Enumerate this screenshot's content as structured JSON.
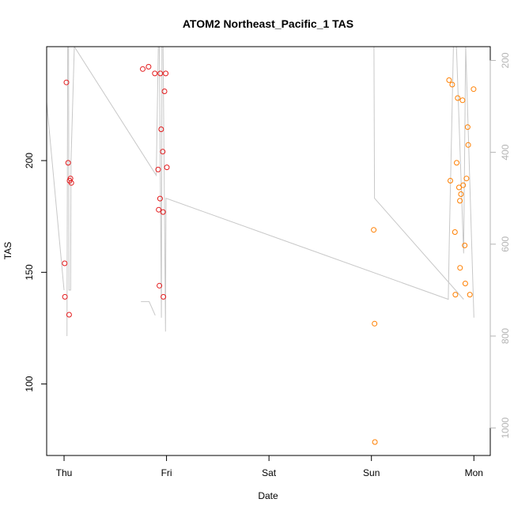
{
  "chart_data": {
    "type": "scatter",
    "title": "ATOM2 Northeast_Pacific_1 TAS",
    "xlabel": "Date",
    "ylabel": "TAS",
    "x_axis": {
      "unit": "days from first tick",
      "ticks": [
        {
          "value": 0,
          "label": "Thu"
        },
        {
          "value": 1,
          "label": "Fri"
        },
        {
          "value": 2,
          "label": "Sat"
        },
        {
          "value": 3,
          "label": "Sun"
        },
        {
          "value": 4,
          "label": "Mon"
        }
      ],
      "xlim": [
        -0.17,
        4.16
      ]
    },
    "y_axis_left": {
      "ticks": [
        100,
        150,
        200
      ],
      "ylim": [
        68,
        251
      ]
    },
    "y_axis_right": {
      "ticks": [
        200,
        400,
        600,
        800,
        1000
      ],
      "ylim": [
        1060,
        170
      ],
      "color": "#b4b4b4"
    },
    "series": [
      {
        "color": "#e41a1c",
        "points": [
          {
            "x": 0.006,
            "y": 154
          },
          {
            "x": 0.008,
            "y": 139
          },
          {
            "x": 0.023,
            "y": 235
          },
          {
            "x": 0.04,
            "y": 199
          },
          {
            "x": 0.049,
            "y": 131
          },
          {
            "x": 0.054,
            "y": 191
          },
          {
            "x": 0.062,
            "y": 192
          },
          {
            "x": 0.071,
            "y": 190
          },
          {
            "x": 0.768,
            "y": 241
          },
          {
            "x": 0.825,
            "y": 242
          },
          {
            "x": 0.886,
            "y": 239
          },
          {
            "x": 0.918,
            "y": 196
          },
          {
            "x": 0.924,
            "y": 178
          },
          {
            "x": 0.931,
            "y": 144
          },
          {
            "x": 0.937,
            "y": 183
          },
          {
            "x": 0.94,
            "y": 239
          },
          {
            "x": 0.948,
            "y": 214
          },
          {
            "x": 0.963,
            "y": 204
          },
          {
            "x": 0.966,
            "y": 177
          },
          {
            "x": 0.969,
            "y": 139
          },
          {
            "x": 0.98,
            "y": 231
          },
          {
            "x": 0.992,
            "y": 239
          },
          {
            "x": 1.003,
            "y": 197
          }
        ]
      },
      {
        "color": "#ff7f00",
        "points": [
          {
            "x": 3.022,
            "y": 169
          },
          {
            "x": 3.031,
            "y": 127
          },
          {
            "x": 3.034,
            "y": 74
          },
          {
            "x": 3.758,
            "y": 236
          },
          {
            "x": 3.77,
            "y": 191
          },
          {
            "x": 3.789,
            "y": 234
          },
          {
            "x": 3.815,
            "y": 168
          },
          {
            "x": 3.82,
            "y": 140
          },
          {
            "x": 3.832,
            "y": 199
          },
          {
            "x": 3.842,
            "y": 228
          },
          {
            "x": 3.855,
            "y": 188
          },
          {
            "x": 3.864,
            "y": 182
          },
          {
            "x": 3.865,
            "y": 152
          },
          {
            "x": 3.874,
            "y": 185
          },
          {
            "x": 3.889,
            "y": 227
          },
          {
            "x": 3.895,
            "y": 189
          },
          {
            "x": 3.911,
            "y": 162
          },
          {
            "x": 3.916,
            "y": 145
          },
          {
            "x": 3.928,
            "y": 192
          },
          {
            "x": 3.939,
            "y": 215
          },
          {
            "x": 3.945,
            "y": 207
          },
          {
            "x": 3.961,
            "y": 140
          },
          {
            "x": 3.997,
            "y": 232
          }
        ]
      }
    ],
    "track_line": {
      "color": "#c8c8c8",
      "points": [
        {
          "x": 0.028,
          "y": 800
        },
        {
          "x": 0.035,
          "y": 160
        },
        {
          "x": 0.044,
          "y": 160
        },
        {
          "x": 0.048,
          "y": 700
        },
        {
          "x": 0.064,
          "y": 700
        },
        {
          "x": 0.068,
          "y": 420
        },
        {
          "x": 0.1,
          "y": 160
        },
        {
          "x": 0.9,
          "y": 450
        },
        {
          "x": 0.92,
          "y": 160
        },
        {
          "x": 0.93,
          "y": 160
        },
        {
          "x": 0.95,
          "y": 760
        },
        {
          "x": 0.955,
          "y": 160
        },
        {
          "x": 0.966,
          "y": 160
        },
        {
          "x": 0.99,
          "y": 790
        },
        {
          "x": 0.995,
          "y": 500
        },
        {
          "x": 3.75,
          "y": 720
        },
        {
          "x": 3.76,
          "y": 590
        },
        {
          "x": 3.8,
          "y": 160
        },
        {
          "x": 3.83,
          "y": 160
        },
        {
          "x": 3.9,
          "y": 620
        },
        {
          "x": 3.92,
          "y": 160
        },
        {
          "x": 4.0,
          "y": 760
        }
      ]
    },
    "track_segments": [
      {
        "points": [
          {
            "x": 0.75,
            "y": 725
          },
          {
            "x": 0.83,
            "y": 725
          },
          {
            "x": 0.89,
            "y": 755
          }
        ]
      },
      {
        "points": [
          {
            "x": -0.22,
            "y": 160
          },
          {
            "x": 0.0,
            "y": 700
          }
        ]
      },
      {
        "points": [
          {
            "x": 3.025,
            "y": 160
          },
          {
            "x": 3.03,
            "y": 500
          },
          {
            "x": 3.9,
            "y": 720
          }
        ]
      },
      {
        "points": [
          {
            "x": 3.92,
            "y": 160
          },
          {
            "x": 3.98,
            "y": 160
          }
        ]
      }
    ],
    "grid": false,
    "legend": "none"
  }
}
